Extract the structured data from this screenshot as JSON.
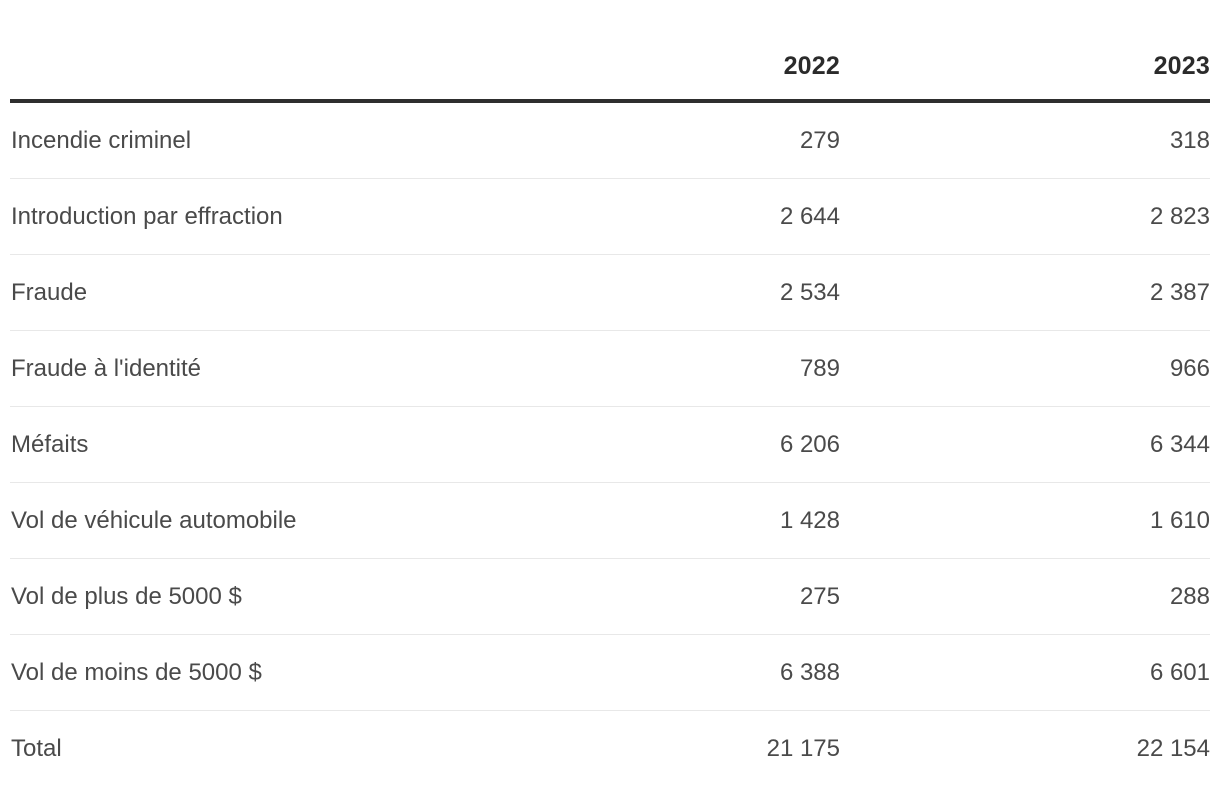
{
  "table": {
    "columns": [
      "",
      "2022",
      "2023"
    ],
    "rows": [
      {
        "label": "Incendie criminel",
        "values": [
          "279",
          "318"
        ]
      },
      {
        "label": "Introduction par effraction",
        "values": [
          "2 644",
          "2 823"
        ]
      },
      {
        "label": "Fraude",
        "values": [
          "2 534",
          "2 387"
        ]
      },
      {
        "label": "Fraude à l'identité",
        "values": [
          "789",
          "966"
        ]
      },
      {
        "label": "Méfaits",
        "values": [
          "6 206",
          "6 344"
        ]
      },
      {
        "label": "Vol de véhicule automobile",
        "values": [
          "1 428",
          "1 610"
        ]
      },
      {
        "label": "Vol de plus de 5000 $",
        "values": [
          "275",
          "288"
        ]
      },
      {
        "label": "Vol de moins de 5000 $",
        "values": [
          "6 388",
          "6 601"
        ]
      },
      {
        "label": "Total",
        "values": [
          "21 175",
          "22 154"
        ]
      }
    ]
  },
  "chart_data": {
    "type": "table",
    "title": "",
    "categories": [
      "Incendie criminel",
      "Introduction par effraction",
      "Fraude",
      "Fraude à l'identité",
      "Méfaits",
      "Vol de véhicule automobile",
      "Vol de plus de 5000 $",
      "Vol de moins de 5000 $",
      "Total"
    ],
    "series": [
      {
        "name": "2022",
        "values": [
          279,
          2644,
          2534,
          789,
          6206,
          1428,
          275,
          6388,
          21175
        ]
      },
      {
        "name": "2023",
        "values": [
          318,
          2823,
          2387,
          966,
          6344,
          1610,
          288,
          6601,
          22154
        ]
      }
    ],
    "number_format": "space-separated thousands (fr-CA)"
  },
  "colors": {
    "background": "#ffffff",
    "header_text": "#2b2b2b",
    "body_text": "#4a4a4a",
    "header_rule": "#2e2e2e",
    "row_separator": "#e8e8e8"
  }
}
